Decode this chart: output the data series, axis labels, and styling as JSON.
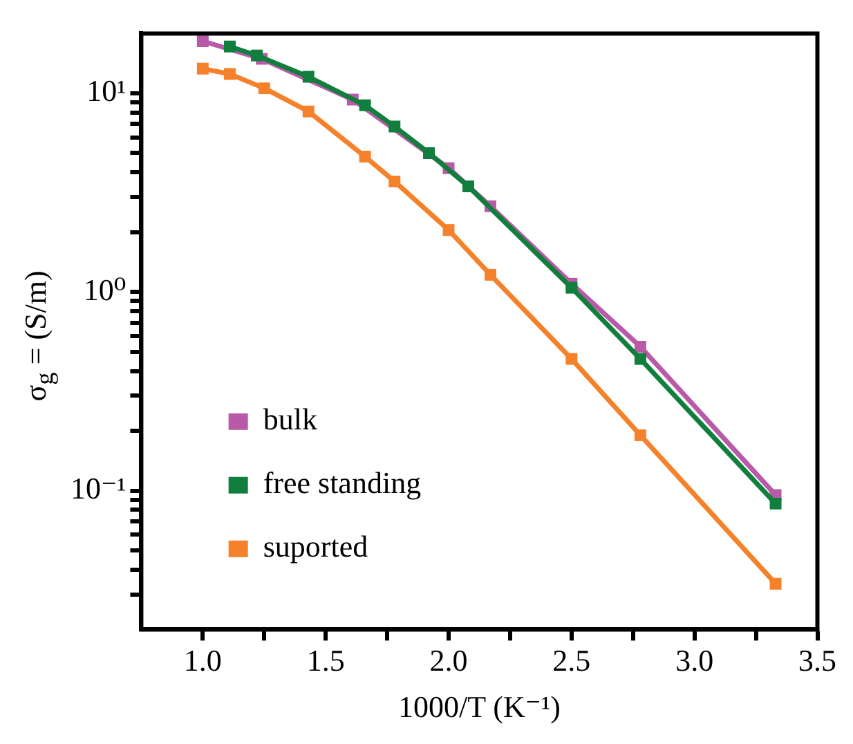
{
  "chart_data": {
    "type": "line",
    "xlabel": "1000/T (K⁻¹)",
    "ylabel": "σ$_{g}$ = (S/m)",
    "log": "y",
    "grid": false,
    "legend": "left",
    "marker": "square",
    "line_style": "solid",
    "xlim": [
      0.75,
      3.5
    ],
    "xticks": [
      {
        "value": 1,
        "label": "1.0"
      },
      {
        "value": 1.25,
        "label": null
      },
      1.5,
      {
        "value": 1.75,
        "label": null
      },
      {
        "value": 2,
        "label": "2.0"
      },
      {
        "value": 2.25,
        "label": null
      },
      2.5,
      {
        "value": 2.75,
        "label": null
      },
      {
        "value": 3,
        "label": "3.0"
      },
      {
        "value": 3.25,
        "label": null
      },
      3.5
    ],
    "ylim": [
      0.02,
      20
    ],
    "yticks": [
      {
        "value": 0.03,
        "label": null
      },
      {
        "value": 0.04,
        "label": null
      },
      {
        "value": 0.05,
        "label": null
      },
      {
        "value": 0.06,
        "label": null
      },
      {
        "value": 0.07,
        "label": null
      },
      {
        "value": 0.08,
        "label": null
      },
      {
        "value": 0.09,
        "label": null
      },
      {
        "value": 0.1,
        "label": "10⁻¹"
      },
      {
        "value": 0.2,
        "label": null
      },
      {
        "value": 0.3,
        "label": null
      },
      {
        "value": 0.4,
        "label": null
      },
      {
        "value": 0.5,
        "label": null
      },
      {
        "value": 0.6,
        "label": null
      },
      {
        "value": 0.7,
        "label": null
      },
      {
        "value": 0.8,
        "label": null
      },
      {
        "value": 0.9,
        "label": null
      },
      {
        "value": 1,
        "label": "10⁰"
      },
      {
        "value": 2,
        "label": null
      },
      {
        "value": 3,
        "label": null
      },
      {
        "value": 4,
        "label": null
      },
      {
        "value": 5,
        "label": null
      },
      {
        "value": 6,
        "label": null
      },
      {
        "value": 7,
        "label": null
      },
      {
        "value": 8,
        "label": null
      },
      {
        "value": 9,
        "label": null
      },
      {
        "value": 10,
        "label": "10¹"
      }
    ],
    "series": [
      {
        "name": "bulk",
        "color": "#b85aa8",
        "x": [
          1.0,
          1.24,
          1.61,
          2.0,
          2.17,
          2.5,
          2.78,
          3.33
        ],
        "values": [
          18.3,
          14.9,
          9.3,
          4.2,
          2.7,
          1.1,
          0.53,
          0.095
        ]
      },
      {
        "name": "free standing",
        "color": "#107f3d",
        "x": [
          1.11,
          1.22,
          1.43,
          1.66,
          1.78,
          1.92,
          2.08,
          2.5,
          2.78,
          3.33
        ],
        "values": [
          17.2,
          15.5,
          12.1,
          8.7,
          6.8,
          5.0,
          3.4,
          1.05,
          0.46,
          0.086
        ]
      },
      {
        "name": "suported",
        "color": "#f5822a",
        "x": [
          1.0,
          1.11,
          1.25,
          1.43,
          1.66,
          1.78,
          2.0,
          2.17,
          2.5,
          2.78,
          3.33
        ],
        "values": [
          13.3,
          12.5,
          10.6,
          8.1,
          4.8,
          3.6,
          2.05,
          1.22,
          0.46,
          0.19,
          0.034
        ]
      }
    ]
  }
}
